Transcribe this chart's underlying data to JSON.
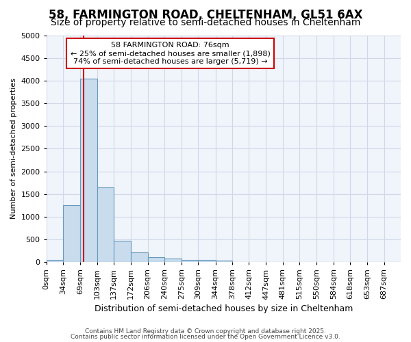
{
  "title1": "58, FARMINGTON ROAD, CHELTENHAM, GL51 6AX",
  "title2": "Size of property relative to semi-detached houses in Cheltenham",
  "xlabel": "Distribution of semi-detached houses by size in Cheltenham",
  "ylabel": "Number of semi-detached properties",
  "bin_labels": [
    "0sqm",
    "34sqm",
    "69sqm",
    "103sqm",
    "137sqm",
    "172sqm",
    "206sqm",
    "240sqm",
    "275sqm",
    "309sqm",
    "344sqm",
    "378sqm",
    "412sqm",
    "447sqm",
    "481sqm",
    "515sqm",
    "550sqm",
    "584sqm",
    "618sqm",
    "653sqm",
    "687sqm"
  ],
  "bin_edges": [
    0,
    34,
    69,
    103,
    137,
    172,
    206,
    240,
    275,
    309,
    344,
    378,
    412,
    447,
    481,
    515,
    550,
    584,
    618,
    653,
    687,
    721
  ],
  "bar_heights": [
    50,
    1250,
    4050,
    1650,
    475,
    210,
    110,
    75,
    50,
    50,
    30,
    0,
    0,
    0,
    0,
    0,
    0,
    0,
    0,
    0,
    0
  ],
  "bar_color": "#c8dcee",
  "bar_edge_color": "#6699bb",
  "red_line_x": 76,
  "annotation_title": "58 FARMINGTON ROAD: 76sqm",
  "annotation_line1": "← 25% of semi-detached houses are smaller (1,898)",
  "annotation_line2": "74% of semi-detached houses are larger (5,719) →",
  "annotation_box_facecolor": "#ffffff",
  "annotation_box_edgecolor": "#cc0000",
  "ylim": [
    0,
    5000
  ],
  "yticks": [
    0,
    500,
    1000,
    1500,
    2000,
    2500,
    3000,
    3500,
    4000,
    4500,
    5000
  ],
  "footer1": "Contains HM Land Registry data © Crown copyright and database right 2025.",
  "footer2": "Contains public sector information licensed under the Open Government Licence v3.0.",
  "background_color": "#ffffff",
  "plot_bg_color": "#f0f4fb",
  "grid_color": "#d0d8e8",
  "title1_fontsize": 12,
  "title2_fontsize": 10,
  "xlabel_fontsize": 9,
  "ylabel_fontsize": 8,
  "tick_fontsize": 8,
  "footer_fontsize": 6.5
}
